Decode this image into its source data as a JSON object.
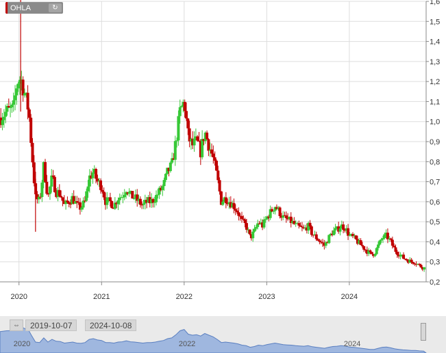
{
  "ticker": {
    "symbol": "OHLA",
    "refresh_icon": "refresh-icon",
    "marker_color": "#c00000"
  },
  "colors": {
    "up": "#37c837",
    "down": "#c00000",
    "grid": "#dddddd",
    "navigator_fill": "#9fb7df",
    "navigator_line": "#5a7fc0"
  },
  "navigator": {
    "from_date": "2019-10-07",
    "to_date": "2024-10-08",
    "years": [
      {
        "label": "2020",
        "x": 2020.05
      },
      {
        "label": "2022",
        "x": 2022.05
      },
      {
        "label": "2024",
        "x": 2024.05
      }
    ]
  },
  "chart_data": {
    "type": "candlestick",
    "title": "",
    "xlabel": "",
    "ylabel": "",
    "ylim": [
      0.2,
      1.6
    ],
    "xlim": [
      2019.77,
      2024.93
    ],
    "y_ticks": [
      "0,2",
      "0,3",
      "0,4",
      "0,5",
      "0,6",
      "0,7",
      "0,8",
      "0,9",
      "1,0",
      "1,1",
      "1,2",
      "1,3",
      "1,4",
      "1,5",
      "1,6"
    ],
    "x_ticks": [
      {
        "label": "2020",
        "x": 2020.0
      },
      {
        "label": "2021",
        "x": 2021.0
      },
      {
        "label": "2022",
        "x": 2022.0
      },
      {
        "label": "2023",
        "x": 2023.0
      },
      {
        "label": "2024",
        "x": 2024.0
      }
    ],
    "grid": true,
    "axis_position": "right",
    "close_path": [
      [
        2019.77,
        1.02
      ],
      [
        2019.85,
        1.05
      ],
      [
        2019.93,
        1.06
      ],
      [
        2019.98,
        1.2
      ],
      [
        2020.02,
        1.22
      ],
      [
        2020.08,
        1.12
      ],
      [
        2020.12,
        1.05
      ],
      [
        2020.15,
        0.88
      ],
      [
        2020.2,
        0.62
      ],
      [
        2020.25,
        0.6
      ],
      [
        2020.3,
        0.78
      ],
      [
        2020.35,
        0.62
      ],
      [
        2020.4,
        0.72
      ],
      [
        2020.45,
        0.65
      ],
      [
        2020.5,
        0.64
      ],
      [
        2020.55,
        0.58
      ],
      [
        2020.6,
        0.6
      ],
      [
        2020.65,
        0.62
      ],
      [
        2020.7,
        0.58
      ],
      [
        2020.75,
        0.57
      ],
      [
        2020.8,
        0.6
      ],
      [
        2020.85,
        0.72
      ],
      [
        2020.9,
        0.75
      ],
      [
        2020.95,
        0.7
      ],
      [
        2021.0,
        0.68
      ],
      [
        2021.05,
        0.6
      ],
      [
        2021.1,
        0.6
      ],
      [
        2021.15,
        0.58
      ],
      [
        2021.2,
        0.62
      ],
      [
        2021.25,
        0.63
      ],
      [
        2021.3,
        0.67
      ],
      [
        2021.35,
        0.63
      ],
      [
        2021.4,
        0.62
      ],
      [
        2021.45,
        0.6
      ],
      [
        2021.5,
        0.58
      ],
      [
        2021.55,
        0.6
      ],
      [
        2021.6,
        0.6
      ],
      [
        2021.65,
        0.62
      ],
      [
        2021.7,
        0.65
      ],
      [
        2021.75,
        0.68
      ],
      [
        2021.8,
        0.75
      ],
      [
        2021.85,
        0.78
      ],
      [
        2021.9,
        0.9
      ],
      [
        2021.95,
        1.05
      ],
      [
        2022.0,
        1.1
      ],
      [
        2022.05,
        0.92
      ],
      [
        2022.1,
        0.88
      ],
      [
        2022.15,
        0.9
      ],
      [
        2022.2,
        0.85
      ],
      [
        2022.25,
        0.95
      ],
      [
        2022.3,
        0.88
      ],
      [
        2022.35,
        0.82
      ],
      [
        2022.4,
        0.72
      ],
      [
        2022.45,
        0.6
      ],
      [
        2022.5,
        0.62
      ],
      [
        2022.55,
        0.6
      ],
      [
        2022.6,
        0.58
      ],
      [
        2022.65,
        0.55
      ],
      [
        2022.7,
        0.5
      ],
      [
        2022.75,
        0.48
      ],
      [
        2022.8,
        0.42
      ],
      [
        2022.85,
        0.45
      ],
      [
        2022.9,
        0.5
      ],
      [
        2022.95,
        0.48
      ],
      [
        2023.0,
        0.52
      ],
      [
        2023.05,
        0.55
      ],
      [
        2023.1,
        0.58
      ],
      [
        2023.15,
        0.55
      ],
      [
        2023.2,
        0.52
      ],
      [
        2023.25,
        0.51
      ],
      [
        2023.3,
        0.5
      ],
      [
        2023.35,
        0.48
      ],
      [
        2023.4,
        0.47
      ],
      [
        2023.45,
        0.46
      ],
      [
        2023.5,
        0.48
      ],
      [
        2023.55,
        0.44
      ],
      [
        2023.6,
        0.42
      ],
      [
        2023.65,
        0.4
      ],
      [
        2023.7,
        0.38
      ],
      [
        2023.75,
        0.42
      ],
      [
        2023.8,
        0.45
      ],
      [
        2023.85,
        0.46
      ],
      [
        2023.9,
        0.48
      ],
      [
        2023.95,
        0.47
      ],
      [
        2024.0,
        0.43
      ],
      [
        2024.05,
        0.42
      ],
      [
        2024.1,
        0.4
      ],
      [
        2024.15,
        0.38
      ],
      [
        2024.2,
        0.36
      ],
      [
        2024.25,
        0.34
      ],
      [
        2024.3,
        0.34
      ],
      [
        2024.35,
        0.38
      ],
      [
        2024.4,
        0.42
      ],
      [
        2024.45,
        0.43
      ],
      [
        2024.5,
        0.4
      ],
      [
        2024.55,
        0.36
      ],
      [
        2024.6,
        0.34
      ],
      [
        2024.65,
        0.32
      ],
      [
        2024.7,
        0.31
      ],
      [
        2024.75,
        0.3
      ],
      [
        2024.8,
        0.3
      ],
      [
        2024.85,
        0.28
      ],
      [
        2024.9,
        0.27
      ]
    ],
    "spikes": [
      {
        "x": 2020.02,
        "high": 1.62,
        "low": 1.05
      },
      {
        "x": 2020.2,
        "high": 0.75,
        "low": 0.45
      }
    ]
  }
}
